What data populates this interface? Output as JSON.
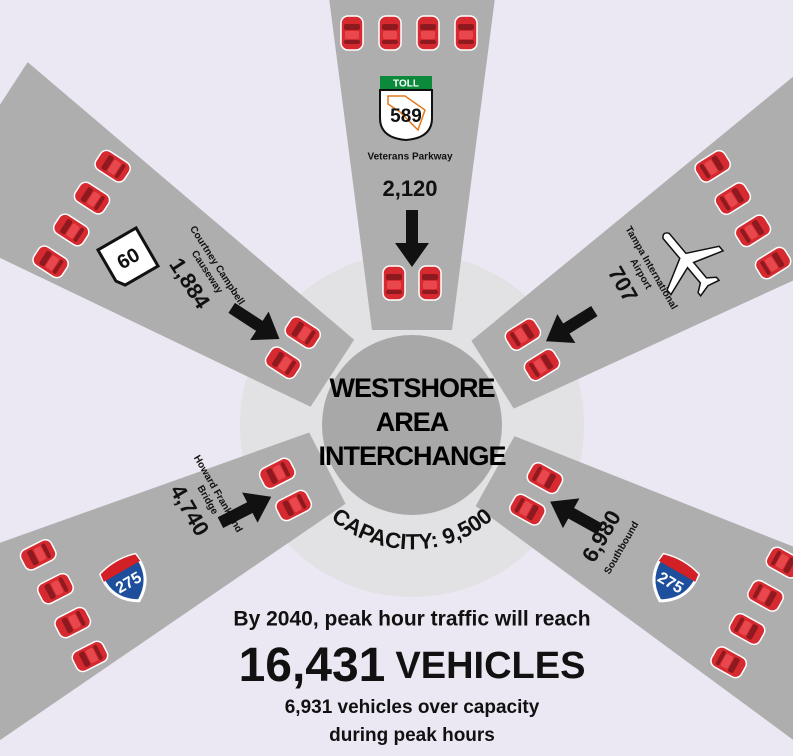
{
  "center": {
    "lines": [
      "WESTSHORE",
      "AREA",
      "INTERCHANGE"
    ],
    "capacity_label": "CAPACITY:",
    "capacity": "9,500"
  },
  "roads": [
    {
      "name": "Veterans Parkway",
      "volume": "2,120",
      "shield_top": "TOLL",
      "shield": "589"
    },
    {
      "name_lines": [
        "Courtney Campbell",
        "Causeway"
      ],
      "volume": "1,884",
      "shield": "60"
    },
    {
      "name_lines": [
        "Tampa International",
        "Airport"
      ],
      "volume": "707"
    },
    {
      "name_lines": [
        "Howard Frankland",
        "Bridge"
      ],
      "volume": "4,740",
      "shield": "275"
    },
    {
      "name": "Southbound",
      "volume": "6,980",
      "shield": "275"
    }
  ],
  "footer": {
    "line1": "By 2040, peak hour traffic will reach",
    "total": "16,431",
    "unit": "VEHICLES",
    "line2": "6,931 vehicles over capacity",
    "line3": "during peak hours"
  }
}
